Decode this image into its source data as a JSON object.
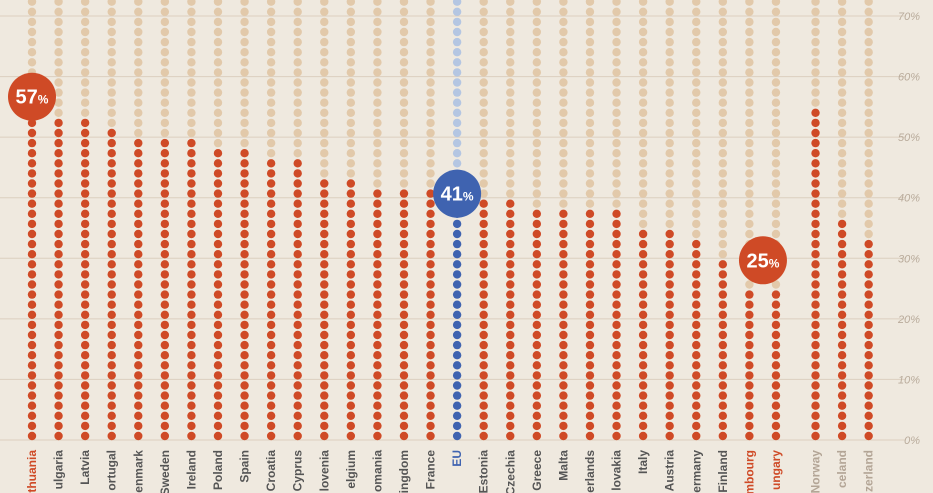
{
  "chart_data": {
    "type": "bar",
    "title": "",
    "xlabel": "",
    "ylabel": "",
    "ylim": [
      0,
      70
    ],
    "y_ticks": [
      "0%",
      "10%",
      "20%",
      "30%",
      "40%",
      "50%",
      "60%",
      "70%"
    ],
    "categories": [
      "Lithuania",
      "Bulgaria",
      "Latvia",
      "Portugal",
      "Denmark",
      "Sweden",
      "Ireland",
      "Poland",
      "Spain",
      "Croatia",
      "Cyprus",
      "Slovenia",
      "Belgium",
      "Romania",
      "United Kingdom",
      "France",
      "EU",
      "Estonia",
      "Czechia",
      "Greece",
      "Malta",
      "Netherlands",
      "Slovakia",
      "Italy",
      "Austria",
      "Germany",
      "Finland",
      "Luxembourg",
      "Hungary",
      "Norway",
      "Iceland",
      "Switzerland"
    ],
    "category_labels_visible": [
      "thuania",
      "ulgaria",
      "Latvia",
      "ortugal",
      "enmark",
      "Sweden",
      "Ireland",
      "Poland",
      "Spain",
      "Croatia",
      "Cyprus",
      "lovenia",
      "elgium",
      "omania",
      "ingdom",
      "France",
      "EU",
      "Estonia",
      "Czechia",
      "Greece",
      "Malta",
      "erlands",
      "lovakia",
      "Italy",
      "Austria",
      "ermany",
      "Finland",
      "mbourg",
      "ungary",
      "Norway",
      "celand",
      "zerland"
    ],
    "values": [
      57,
      53,
      53,
      51,
      50,
      49,
      49,
      48,
      48,
      46,
      46,
      43,
      43,
      42,
      41,
      41,
      41,
      39,
      39,
      38,
      38,
      38,
      38,
      35,
      34,
      33,
      29,
      25,
      25,
      54,
      36,
      33
    ],
    "callouts": [
      {
        "category": "Lithuania",
        "value": "57",
        "unit": "%"
      },
      {
        "category": "EU",
        "value": "41",
        "unit": "%"
      },
      {
        "category": "Hungary",
        "value": "25",
        "unit": "%"
      }
    ],
    "highlight": {
      "min_categories": [
        "Luxembourg",
        "Hungary"
      ],
      "max_categories": [
        "Lithuania"
      ],
      "average_category": "EU"
    },
    "colors": {
      "filled": "#cf4a26",
      "empty": "#e2c9aa",
      "eu_filled": "#3f63b0",
      "eu_empty": "#b4c6e2",
      "label": "#555555",
      "label_highlight": "#cf4a26",
      "label_nonmember": "#b3a596",
      "grid": "#dccfbf",
      "background": "#efe9df"
    },
    "grid": true
  }
}
